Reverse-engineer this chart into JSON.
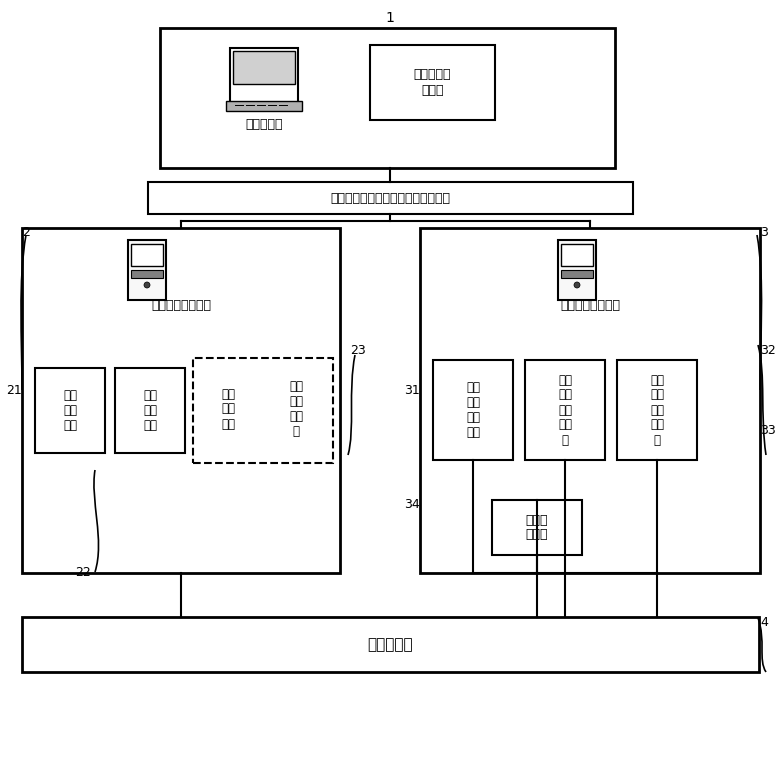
{
  "bg_color": "#ffffff",
  "line_color": "#000000",
  "text_color": "#000000",
  "label_1": "1",
  "label_2": "2",
  "label_3": "3",
  "label_4": "4",
  "label_21": "21",
  "label_22": "22",
  "label_23": "23",
  "label_31": "31",
  "label_32": "32",
  "label_33": "33",
  "label_34": "34",
  "text_master": "测试主控机",
  "text_software": "软件集成测\n试模块",
  "text_network": "网络通信设备（以太网或串口通信）",
  "text_hmi": "人机接口测试模块",
  "text_comm": "通信接口测试模块",
  "text_sim": "模拟\n操控\n模块",
  "text_machine": "机器\n视觉\n模块",
  "text_voltage": "电压\n采样\n单板",
  "text_time": "时间\n分析\n子模\n块",
  "text_ethernet": "以太\n网测\n试子\n模块",
  "text_serial": "串口\n通信\n测试\n子模\n块",
  "text_bus": "总线\n通信\n测试\n子模\n块",
  "text_fault": "故障注\n入设备",
  "text_display": "被测显示器",
  "font": "SimHei"
}
